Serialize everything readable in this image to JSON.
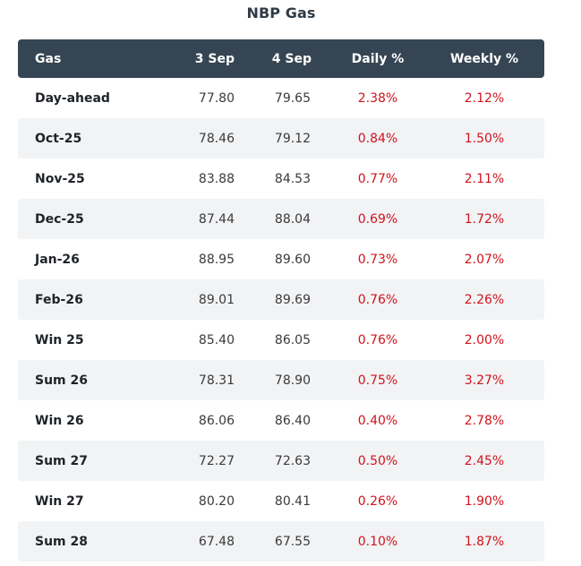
{
  "title": "NBP Gas",
  "table": {
    "headers": [
      "Gas",
      "3 Sep",
      "4 Sep",
      "Daily %",
      "Weekly %"
    ],
    "rows": [
      {
        "name": "Day-ahead",
        "d1": "77.80",
        "d2": "79.65",
        "daily": "2.38%",
        "weekly": "2.12%"
      },
      {
        "name": "Oct-25",
        "d1": "78.46",
        "d2": "79.12",
        "daily": "0.84%",
        "weekly": "1.50%"
      },
      {
        "name": "Nov-25",
        "d1": "83.88",
        "d2": "84.53",
        "daily": "0.77%",
        "weekly": "2.11%"
      },
      {
        "name": "Dec-25",
        "d1": "87.44",
        "d2": "88.04",
        "daily": "0.69%",
        "weekly": "1.72%"
      },
      {
        "name": "Jan-26",
        "d1": "88.95",
        "d2": "89.60",
        "daily": "0.73%",
        "weekly": "2.07%"
      },
      {
        "name": "Feb-26",
        "d1": "89.01",
        "d2": "89.69",
        "daily": "0.76%",
        "weekly": "2.26%"
      },
      {
        "name": "Win 25",
        "d1": "85.40",
        "d2": "86.05",
        "daily": "0.76%",
        "weekly": "2.00%"
      },
      {
        "name": "Sum 26",
        "d1": "78.31",
        "d2": "78.90",
        "daily": "0.75%",
        "weekly": "3.27%"
      },
      {
        "name": "Win 26",
        "d1": "86.06",
        "d2": "86.40",
        "daily": "0.40%",
        "weekly": "2.78%"
      },
      {
        "name": "Sum 27",
        "d1": "72.27",
        "d2": "72.63",
        "daily": "0.50%",
        "weekly": "2.45%"
      },
      {
        "name": "Win 27",
        "d1": "80.20",
        "d2": "80.41",
        "daily": "0.26%",
        "weekly": "1.90%"
      },
      {
        "name": "Sum 28",
        "d1": "67.48",
        "d2": "67.55",
        "daily": "0.10%",
        "weekly": "1.87%"
      }
    ]
  },
  "colors": {
    "header_bg": "#354553",
    "stripe_bg": "#f2f3f5",
    "change_text": "#d0131b"
  }
}
